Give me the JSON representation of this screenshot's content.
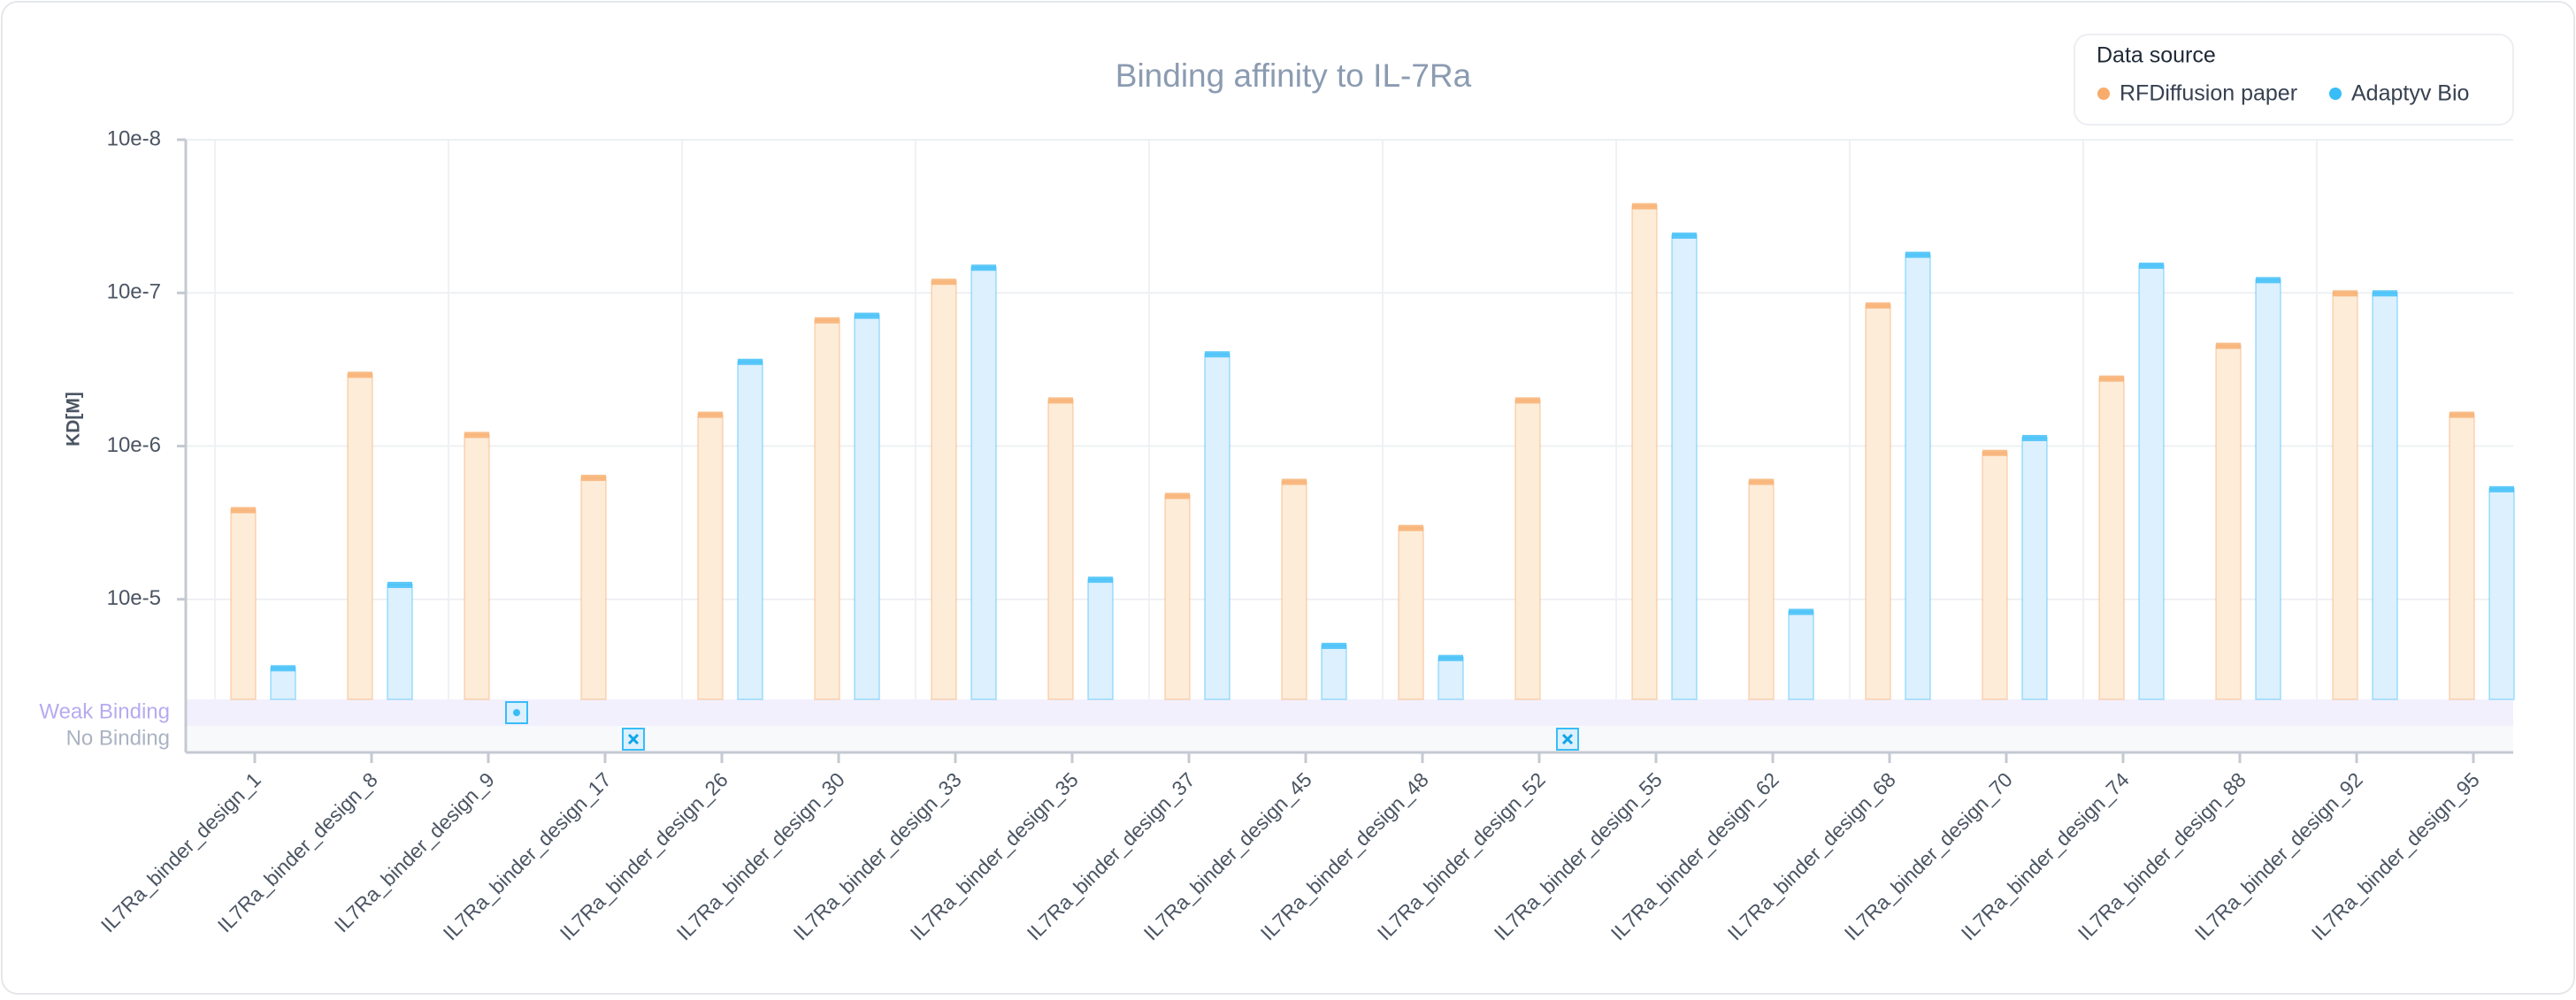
{
  "chart_data": {
    "type": "bar",
    "title": "Binding affinity to IL-7Ra",
    "y_label": "KD[M]",
    "log_scale": true,
    "grid": true,
    "legend_title": "Data source",
    "legend_position": "top-right",
    "categories": [
      "IL7Ra_binder_design_1",
      "IL7Ra_binder_design_8",
      "IL7Ra_binder_design_9",
      "IL7Ra_binder_design_17",
      "IL7Ra_binder_design_26",
      "IL7Ra_binder_design_30",
      "IL7Ra_binder_design_33",
      "IL7Ra_binder_design_35",
      "IL7Ra_binder_design_37",
      "IL7Ra_binder_design_45",
      "IL7Ra_binder_design_48",
      "IL7Ra_binder_design_52",
      "IL7Ra_binder_design_55",
      "IL7Ra_binder_design_62",
      "IL7Ra_binder_design_68",
      "IL7Ra_binder_design_70",
      "IL7Ra_binder_design_74",
      "IL7Ra_binder_design_88",
      "IL7Ra_binder_design_92",
      "IL7Ra_binder_design_95"
    ],
    "series": [
      {
        "name": "RFDiffusion paper",
        "color": "#f7ac6c",
        "fill": "#fdecd8",
        "values": [
          2.6e-05,
          3.4e-06,
          8.4e-06,
          1.6e-05,
          6.2e-06,
          1.5e-06,
          8.4e-07,
          5e-06,
          2.1e-05,
          1.7e-05,
          3.4e-05,
          5e-06,
          2.7e-07,
          1.7e-05,
          1.2e-06,
          1.1e-05,
          3.6e-06,
          2.2e-06,
          1e-06,
          6.2e-06
        ]
      },
      {
        "name": "Adaptyv Bio",
        "color": "#38bdf8",
        "fill": "#ddf0fd",
        "values": [
          0.00028,
          8e-05,
          null,
          null,
          2.8e-06,
          1.4e-06,
          6.8e-07,
          7.4e-05,
          2.5e-06,
          0.0002,
          0.00024,
          null,
          4.2e-07,
          0.00012,
          5.6e-07,
          8.8e-06,
          6.6e-07,
          8.2e-07,
          1e-06,
          1.9e-05
        ]
      }
    ],
    "weak_binding": {
      "label": "Weak Binding",
      "categories": [
        "IL7Ra_binder_design_9"
      ]
    },
    "no_binding": {
      "label": "No Binding",
      "categories": [
        "IL7Ra_binder_design_17",
        "IL7Ra_binder_design_52"
      ]
    },
    "ylim": [
      0.00045,
      1e-07
    ],
    "yticks": [
      {
        "value": 1e-07,
        "label": "10e-8"
      },
      {
        "value": 1e-06,
        "label": "10e-7"
      },
      {
        "value": 1e-05,
        "label": "10e-6"
      },
      {
        "value": 0.0001,
        "label": "10e-5"
      }
    ]
  }
}
